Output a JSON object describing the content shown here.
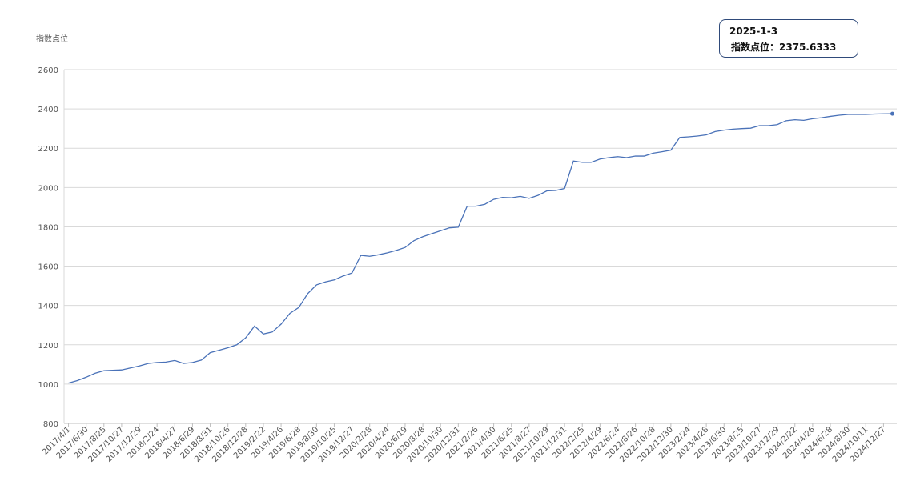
{
  "chart_data": {
    "type": "line",
    "y_label": "指数点位",
    "categories": [
      "2017/4/1",
      null,
      "2017/6/30",
      null,
      "2017/8/25",
      null,
      "2017/10/27",
      null,
      "2017/12/29",
      null,
      "2018/2/24",
      null,
      "2018/4/27",
      null,
      "2018/6/29",
      null,
      "2018/8/31",
      null,
      "2018/10/26",
      null,
      "2018/12/28",
      null,
      "2019/2/22",
      null,
      "2019/4/26",
      null,
      "2019/6/28",
      null,
      "2019/8/30",
      null,
      "2019/10/25",
      null,
      "2019/12/27",
      null,
      "2020/2/28",
      null,
      "2020/4/24",
      null,
      "2020/6/19",
      null,
      "2020/8/28",
      null,
      "2020/10/30",
      null,
      "2020/12/31",
      null,
      "2021/2/26",
      null,
      "2021/4/30",
      null,
      "2021/6/25",
      null,
      "2021/8/27",
      null,
      "2021/10/29",
      null,
      "2021/12/31",
      null,
      "2022/2/25",
      null,
      "2022/4/29",
      null,
      "2022/6/24",
      null,
      "2022/8/26",
      null,
      "2022/10/28",
      null,
      "2022/12/30",
      null,
      "2023/2/24",
      null,
      "2023/4/28",
      null,
      "2023/6/30",
      null,
      "2023/8/25",
      null,
      "2023/10/27",
      null,
      "2023/12/29",
      null,
      "2024/2/22",
      null,
      "2024/4/26",
      null,
      "2024/6/28",
      null,
      "2024/8/30",
      null,
      "2024/10/11",
      null,
      "2024/12/27",
      null
    ],
    "series": [
      {
        "color": "#4a72b8",
        "values": [
          1005,
          1018,
          1035,
          1055,
          1068,
          1070,
          1072,
          1082,
          1092,
          1105,
          1110,
          1112,
          1120,
          1105,
          1110,
          1122,
          1160,
          1172,
          1185,
          1200,
          1235,
          1295,
          1255,
          1265,
          1305,
          1360,
          1390,
          1460,
          1505,
          1520,
          1530,
          1550,
          1565,
          1655,
          1650,
          1658,
          1668,
          1680,
          1695,
          1730,
          1750,
          1765,
          1780,
          1795,
          1798,
          1905,
          1905,
          1915,
          1940,
          1950,
          1948,
          1955,
          1945,
          1960,
          1983,
          1985,
          1995,
          2135,
          2128,
          2128,
          2145,
          2152,
          2157,
          2152,
          2160,
          2160,
          2175,
          2182,
          2190,
          2255,
          2258,
          2262,
          2268,
          2285,
          2292,
          2297,
          2300,
          2302,
          2315,
          2315,
          2320,
          2340,
          2345,
          2342,
          2350,
          2355,
          2362,
          2368,
          2372,
          2372,
          2372,
          2374,
          2375,
          2375.6333
        ]
      }
    ],
    "ylim": [
      800,
      2600
    ],
    "yticks": [
      800,
      1000,
      1200,
      1400,
      1600,
      1800,
      2000,
      2200,
      2400,
      2600
    ],
    "grid": true,
    "tooltip": {
      "title": "2025-1-3",
      "label": "指数点位：2375.6333"
    }
  }
}
